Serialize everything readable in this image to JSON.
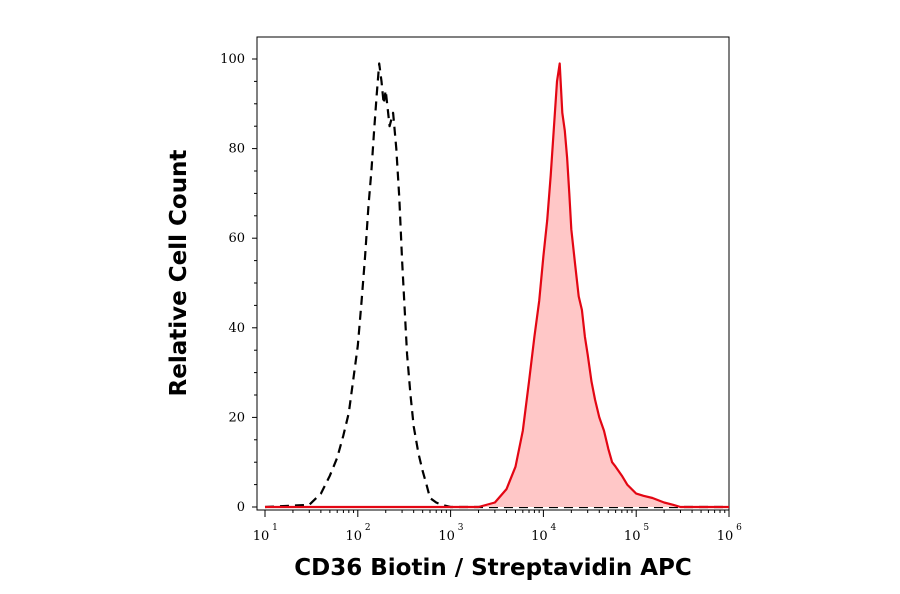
{
  "chart_data": {
    "type": "area",
    "xlabel": "CD36 Biotin / Streptavidin APC",
    "ylabel": "Relative Cell Count",
    "x_scale": "log",
    "xlim": [
      10,
      1000000
    ],
    "ylim": [
      0,
      100
    ],
    "x_tick_labels": [
      {
        "base": "10",
        "exp": "1"
      },
      {
        "base": "10",
        "exp": "2"
      },
      {
        "base": "10",
        "exp": "3"
      },
      {
        "base": "10",
        "exp": "4"
      },
      {
        "base": "10",
        "exp": "5"
      },
      {
        "base": "10",
        "exp": "6"
      }
    ],
    "y_ticks": [
      0,
      20,
      40,
      60,
      80,
      100
    ],
    "series": [
      {
        "style": "dashed",
        "color": "#000000",
        "fill": "none",
        "x": [
          10,
          30,
          40,
          50,
          60,
          70,
          80,
          90,
          100,
          110,
          120,
          130,
          140,
          150,
          160,
          170,
          180,
          190,
          200,
          220,
          240,
          260,
          280,
          300,
          320,
          340,
          370,
          400,
          450,
          500,
          550,
          600,
          700,
          800,
          1000,
          1000000
        ],
        "y": [
          0,
          0.5,
          3,
          7,
          11,
          16,
          21,
          29,
          36,
          46,
          56,
          67,
          75,
          84,
          92,
          99,
          95,
          90,
          93,
          85,
          88,
          80,
          69,
          55,
          44,
          34,
          25,
          18,
          12,
          8,
          5,
          2,
          1,
          0.5,
          0,
          0
        ]
      },
      {
        "style": "solid",
        "color": "#e30613",
        "fill": "#ffc7c7",
        "x": [
          10,
          2000,
          3000,
          4000,
          5000,
          6000,
          7000,
          8000,
          9000,
          10000,
          11000,
          12000,
          13000,
          14000,
          15000,
          16000,
          17000,
          18000,
          19000,
          20000,
          22000,
          24000,
          26000,
          28000,
          30000,
          33000,
          36000,
          40000,
          45000,
          50000,
          55000,
          60000,
          70000,
          80000,
          100000,
          120000,
          150000,
          200000,
          250000,
          300000,
          1000000
        ],
        "y": [
          0,
          0,
          1,
          4,
          9,
          17,
          28,
          38,
          46,
          56,
          64,
          74,
          85,
          95,
          99,
          88,
          84,
          78,
          70,
          62,
          54,
          47,
          44,
          38,
          34,
          28,
          24,
          20,
          17,
          13,
          10,
          9,
          7,
          5,
          3,
          2.5,
          2,
          1,
          0.5,
          0,
          0
        ]
      }
    ]
  }
}
